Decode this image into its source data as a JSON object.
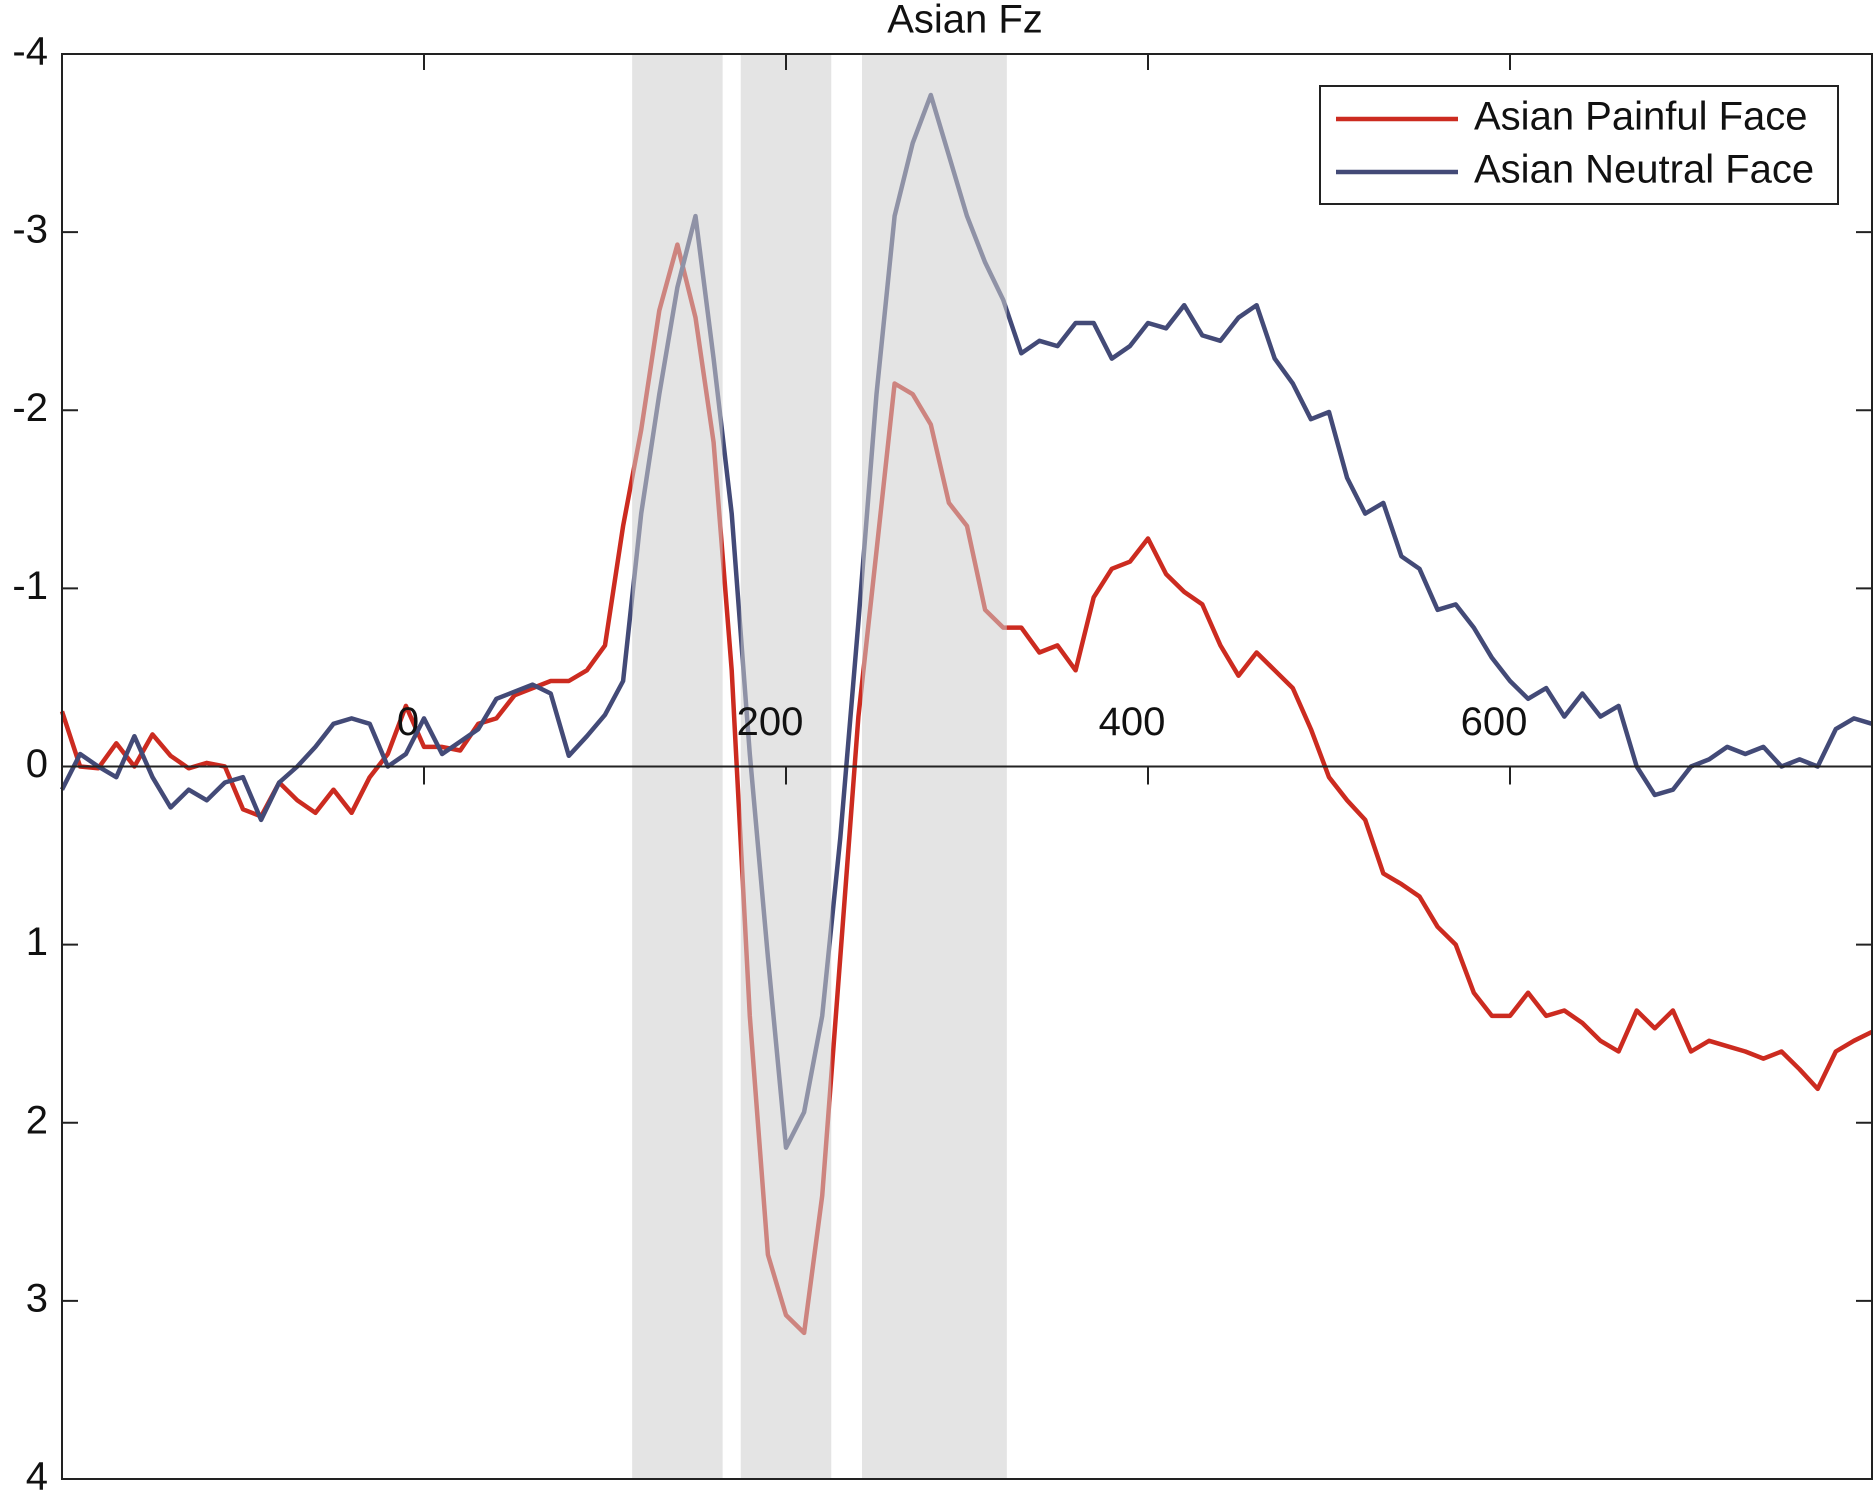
{
  "chart_data": {
    "type": "line",
    "title": "Asian Fz",
    "x": [
      -200,
      -190,
      -180,
      -170,
      -160,
      -150,
      -140,
      -130,
      -120,
      -110,
      -100,
      -90,
      -80,
      -70,
      -60,
      -50,
      -40,
      -30,
      -20,
      -10,
      0,
      10,
      20,
      30,
      40,
      50,
      60,
      70,
      80,
      90,
      100,
      110,
      120,
      130,
      140,
      150,
      160,
      170,
      180,
      190,
      200,
      210,
      220,
      230,
      240,
      250,
      260,
      270,
      280,
      290,
      300,
      310,
      320,
      330,
      340,
      350,
      360,
      370,
      380,
      390,
      400,
      410,
      420,
      430,
      440,
      450,
      460,
      470,
      480,
      490,
      500,
      510,
      520,
      530,
      540,
      550,
      560,
      570,
      580,
      590,
      600,
      610,
      620,
      630,
      640,
      650,
      660,
      670,
      680,
      690,
      700,
      710,
      720,
      730,
      740,
      750,
      760,
      770,
      780,
      790,
      800
    ],
    "series": [
      {
        "name": "Asian Painful Face",
        "color": "#cc2b20",
        "values": [
          -0.31,
          0,
          0.01,
          -0.13,
          0,
          -0.18,
          -0.06,
          0.01,
          -0.02,
          0,
          0.24,
          0.28,
          0.09,
          0.19,
          0.26,
          0.13,
          0.26,
          0.06,
          -0.07,
          -0.34,
          -0.11,
          -0.11,
          -0.09,
          -0.24,
          -0.27,
          -0.4,
          -0.44,
          -0.48,
          -0.48,
          -0.54,
          -0.68,
          -1.35,
          -1.89,
          -2.56,
          -2.93,
          -2.52,
          -1.82,
          -0.54,
          1.4,
          2.74,
          3.08,
          3.18,
          2.41,
          1.07,
          -0.28,
          -1.21,
          -2.15,
          -2.09,
          -1.92,
          -1.48,
          -1.35,
          -0.88,
          -0.78,
          -0.78,
          -0.64,
          -0.68,
          -0.54,
          -0.95,
          -1.11,
          -1.15,
          -1.28,
          -1.08,
          -0.98,
          -0.91,
          -0.68,
          -0.51,
          -0.64,
          -0.54,
          -0.44,
          -0.21,
          0.06,
          0.19,
          0.3,
          0.6,
          0.66,
          0.73,
          0.9,
          1.0,
          1.27,
          1.4,
          1.4,
          1.27,
          1.4,
          1.37,
          1.44,
          1.54,
          1.6,
          1.37,
          1.47,
          1.37,
          1.6,
          1.54,
          1.57,
          1.6,
          1.64,
          1.6,
          1.7,
          1.81,
          1.6,
          1.54,
          1.49
        ]
      },
      {
        "name": "Asian Neutral Face",
        "color": "#434a77",
        "values": [
          0.13,
          -0.07,
          0,
          0.06,
          -0.17,
          0.06,
          0.23,
          0.13,
          0.19,
          0.09,
          0.06,
          0.3,
          0.09,
          0,
          -0.11,
          -0.24,
          -0.27,
          -0.24,
          0,
          -0.07,
          -0.27,
          -0.07,
          -0.14,
          -0.21,
          -0.38,
          -0.42,
          -0.46,
          -0.41,
          -0.06,
          -0.17,
          -0.29,
          -0.48,
          -1.42,
          -2.09,
          -2.69,
          -3.09,
          -2.29,
          -1.42,
          -0.07,
          1.07,
          2.14,
          1.94,
          1.4,
          0.4,
          -0.81,
          -2.09,
          -3.09,
          -3.5,
          -3.77,
          -3.43,
          -3.09,
          -2.83,
          -2.62,
          -2.32,
          -2.39,
          -2.36,
          -2.49,
          -2.49,
          -2.29,
          -2.36,
          -2.49,
          -2.46,
          -2.59,
          -2.42,
          -2.39,
          -2.52,
          -2.59,
          -2.29,
          -2.15,
          -1.95,
          -1.99,
          -1.62,
          -1.42,
          -1.48,
          -1.18,
          -1.11,
          -0.88,
          -0.91,
          -0.78,
          -0.61,
          -0.48,
          -0.38,
          -0.44,
          -0.28,
          -0.41,
          -0.28,
          -0.34,
          0,
          0.16,
          0.13,
          0,
          -0.04,
          -0.11,
          -0.07,
          -0.11,
          0,
          -0.04,
          0,
          -0.21,
          -0.27,
          -0.24
        ]
      }
    ],
    "shaded_regions": [
      [
        115,
        165
      ],
      [
        175,
        225
      ],
      [
        242,
        322
      ]
    ],
    "xlim": [
      -200,
      800
    ],
    "xticks": [
      0,
      200,
      400,
      600
    ],
    "ylim": [
      -4,
      4
    ],
    "yticks": [
      -4,
      -3,
      -2,
      -1,
      0,
      1,
      2,
      3,
      4
    ],
    "y_reversed": true,
    "legend": "northeast"
  }
}
